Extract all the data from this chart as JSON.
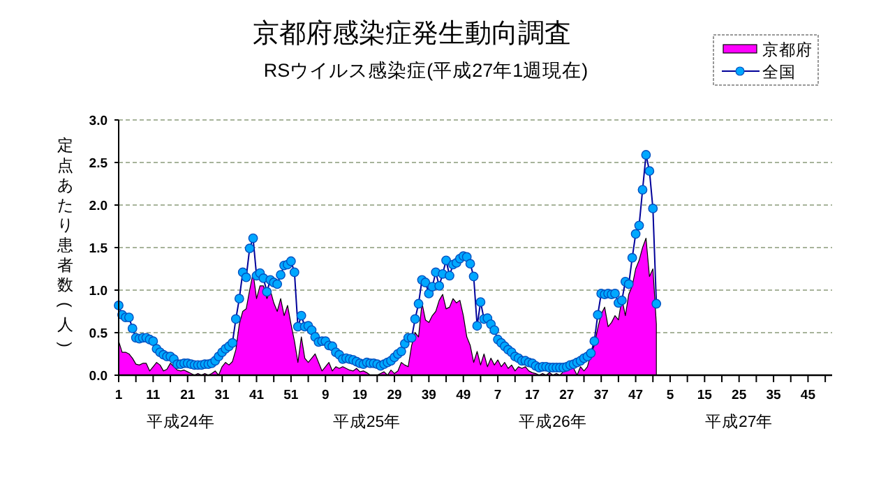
{
  "chart_data": {
    "type": "line",
    "title": "京都府感染症発生動向調査",
    "subtitle": "RSウイルス感染症(平成27年1週現在)",
    "ylabel": "定点あたり患者数(人)",
    "annotations": [
      "平成24年",
      "平成25年",
      "平成26年",
      "平成27年"
    ],
    "categories": [
      "1",
      null,
      null,
      null,
      null,
      null,
      null,
      null,
      null,
      null,
      "11",
      null,
      null,
      null,
      null,
      null,
      null,
      null,
      null,
      null,
      "21",
      null,
      null,
      null,
      null,
      null,
      null,
      null,
      null,
      null,
      "31",
      null,
      null,
      null,
      null,
      null,
      null,
      null,
      null,
      null,
      "41",
      null,
      null,
      null,
      null,
      null,
      null,
      null,
      null,
      null,
      "51",
      null,
      null,
      null,
      null,
      null,
      null,
      null,
      null,
      null,
      "9",
      null,
      null,
      null,
      null,
      null,
      null,
      null,
      null,
      null,
      "19",
      null,
      null,
      null,
      null,
      null,
      null,
      null,
      null,
      null,
      "29",
      null,
      null,
      null,
      null,
      null,
      null,
      null,
      null,
      null,
      "39",
      null,
      null,
      null,
      null,
      null,
      null,
      null,
      null,
      null,
      "49",
      null,
      null,
      null,
      null,
      null,
      null,
      null,
      null,
      null,
      "7",
      null,
      null,
      null,
      null,
      null,
      null,
      null,
      null,
      null,
      "17",
      null,
      null,
      null,
      null,
      null,
      null,
      null,
      null,
      null,
      "27",
      null,
      null,
      null,
      null,
      null,
      null,
      null,
      null,
      null,
      "37",
      null,
      null,
      null,
      null,
      null,
      null,
      null,
      null,
      null,
      "47",
      null,
      null,
      null,
      null,
      null,
      null,
      null,
      null,
      null,
      "5",
      null,
      null,
      null,
      null,
      null,
      null,
      null,
      null,
      null,
      "15",
      null,
      null,
      null,
      null,
      null,
      null,
      null,
      null,
      null,
      "25",
      null,
      null,
      null,
      null,
      null,
      null,
      null,
      null,
      null,
      "35",
      null,
      null,
      null,
      null,
      null,
      null,
      null,
      null,
      null,
      "45",
      null,
      null,
      null,
      null,
      null,
      null,
      null
    ],
    "ylim": [
      0,
      3
    ],
    "yticks": [
      {
        "value": 0,
        "label": "0.0"
      },
      {
        "value": 0.5,
        "label": "0.5"
      },
      {
        "value": 1,
        "label": "1.0"
      },
      {
        "value": 1.5,
        "label": "1.5"
      },
      {
        "value": 2,
        "label": "2.0"
      },
      {
        "value": 2.5,
        "label": "2.5"
      },
      {
        "value": 3,
        "label": "3.0"
      }
    ],
    "grid": "y",
    "legend": "top right",
    "series": [
      {
        "name": "京都府",
        "type": "area",
        "color": "#ff00ff",
        "values": [
          0.4,
          0.27,
          0.27,
          0.25,
          0.2,
          0.13,
          0.12,
          0.14,
          0.14,
          0.05,
          0.1,
          0.15,
          0.12,
          0.05,
          0.07,
          0.14,
          0.1,
          0.06,
          0.05,
          0.06,
          0.04,
          0.02,
          0,
          0.02,
          0,
          0.02,
          0,
          0.02,
          0.05,
          0,
          0.1,
          0.15,
          0.12,
          0.16,
          0.3,
          0.6,
          0.75,
          0.78,
          1.0,
          1.2,
          0.9,
          1.05,
          1.05,
          0.9,
          1.0,
          0.85,
          0.75,
          0.9,
          0.7,
          0.82,
          0.6,
          0.4,
          0.15,
          0.45,
          0.2,
          0.15,
          0.2,
          0.25,
          0.15,
          0.05,
          0.1,
          0.15,
          0.05,
          0.1,
          0.08,
          0.1,
          0.08,
          0.06,
          0.05,
          0.08,
          0.04,
          0.05,
          0.03,
          0,
          0,
          0,
          0.02,
          0.04,
          0,
          0.06,
          0.02,
          0.05,
          0.15,
          0.12,
          0.1,
          0.35,
          0.5,
          0.45,
          0.85,
          0.65,
          0.62,
          0.7,
          0.75,
          0.88,
          0.95,
          0.78,
          0.8,
          0.9,
          0.85,
          0.88,
          0.7,
          0.45,
          0.35,
          0.15,
          0.28,
          0.12,
          0.25,
          0.1,
          0.2,
          0.12,
          0.18,
          0.1,
          0.15,
          0.08,
          0.12,
          0.05,
          0.1,
          0.08,
          0.1,
          0.05,
          0.03,
          0.02,
          0,
          0.02,
          0,
          0.03,
          0,
          0.02,
          0,
          0.04,
          0.05,
          0.1,
          0.08,
          0,
          0.1,
          0.05,
          0.1,
          0.25,
          0.35,
          0.55,
          0.72,
          0.8,
          0.57,
          0.62,
          0.7,
          0.65,
          0.9,
          0.7,
          0.95,
          1.05,
          1.25,
          1.35,
          1.5,
          1.61,
          1.16,
          1.25,
          0.6,
          null,
          null,
          null,
          null,
          null,
          null,
          null,
          null,
          null,
          null,
          null,
          null,
          null,
          null,
          null,
          null,
          null,
          null,
          null,
          null,
          null,
          null,
          null,
          null,
          null,
          null,
          null,
          null,
          null,
          null,
          null,
          null,
          null,
          null,
          null,
          null,
          null,
          null,
          null,
          null,
          null,
          null,
          null,
          null,
          null,
          null,
          null,
          null,
          null,
          null,
          null
        ]
      },
      {
        "name": "全国",
        "type": "line",
        "color": "#00a8ff",
        "marker": "circle",
        "line_style": "solid",
        "values": [
          0.82,
          0.71,
          0.68,
          0.68,
          0.55,
          0.44,
          0.43,
          0.44,
          0.44,
          0.42,
          0.4,
          0.31,
          0.27,
          0.24,
          0.22,
          0.22,
          0.19,
          0.13,
          0.13,
          0.14,
          0.14,
          0.13,
          0.12,
          0.12,
          0.12,
          0.13,
          0.13,
          0.14,
          0.17,
          0.22,
          0.27,
          0.31,
          0.34,
          0.38,
          0.66,
          0.9,
          1.21,
          1.15,
          1.49,
          1.61,
          1.17,
          1.2,
          1.14,
          0.98,
          1.12,
          1.09,
          1.07,
          1.18,
          1.29,
          1.3,
          1.34,
          1.21,
          0.57,
          0.7,
          0.57,
          0.58,
          0.53,
          0.45,
          0.39,
          0.4,
          0.4,
          0.35,
          0.34,
          0.27,
          0.24,
          0.19,
          0.2,
          0.19,
          0.18,
          0.16,
          0.14,
          0.13,
          0.15,
          0.14,
          0.14,
          0.13,
          0.11,
          0.13,
          0.15,
          0.17,
          0.21,
          0.25,
          0.28,
          0.37,
          0.44,
          0.44,
          0.66,
          0.84,
          1.12,
          1.09,
          0.96,
          1.04,
          1.21,
          1.05,
          1.19,
          1.35,
          1.17,
          1.3,
          1.32,
          1.37,
          1.4,
          1.39,
          1.31,
          1.16,
          0.58,
          0.86,
          0.66,
          0.67,
          0.6,
          0.53,
          0.42,
          0.38,
          0.34,
          0.3,
          0.27,
          0.22,
          0.2,
          0.17,
          0.17,
          0.15,
          0.14,
          0.11,
          0.09,
          0.1,
          0.1,
          0.09,
          0.09,
          0.09,
          0.09,
          0.09,
          0.1,
          0.12,
          0.13,
          0.15,
          0.17,
          0.2,
          0.22,
          0.26,
          0.4,
          0.71,
          0.96,
          0.95,
          0.96,
          0.95,
          0.96,
          0.85,
          0.88,
          1.1,
          1.07,
          1.38,
          1.66,
          1.76,
          2.18,
          2.59,
          2.4,
          1.96,
          0.84,
          null,
          null,
          null,
          null,
          null,
          null,
          null,
          null,
          null,
          null,
          null,
          null,
          null,
          null,
          null,
          null,
          null,
          null,
          null,
          null,
          null,
          null,
          null,
          null,
          null,
          null,
          null,
          null,
          null,
          null,
          null,
          null,
          null,
          null,
          null,
          null,
          null,
          null,
          null,
          null,
          null,
          null,
          null,
          null,
          null,
          null,
          null,
          null,
          null,
          null,
          null
        ]
      }
    ]
  }
}
